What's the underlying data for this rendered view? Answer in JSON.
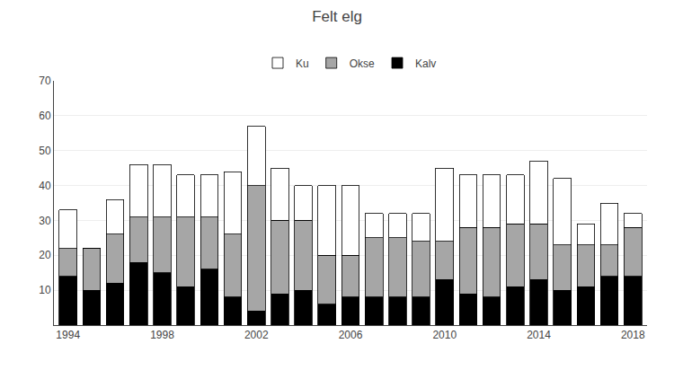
{
  "chart_data": {
    "type": "bar",
    "title": "Felt elg",
    "stacked": true,
    "categories": [
      "1994",
      null,
      null,
      null,
      "1998",
      null,
      null,
      null,
      "2002",
      null,
      null,
      null,
      "2006",
      null,
      null,
      null,
      "2010",
      null,
      null,
      null,
      "2014",
      null,
      null,
      null,
      "2018"
    ],
    "series": [
      {
        "name": "Kalv",
        "color": "#000000",
        "values": [
          14,
          10,
          12,
          18,
          15,
          11,
          16,
          8,
          4,
          9,
          10,
          6,
          8,
          8,
          8,
          8,
          13,
          9,
          8,
          11,
          13,
          10,
          11,
          14,
          14
        ]
      },
      {
        "name": "Okse",
        "color": "#a6a6a6",
        "values": [
          8,
          12,
          14,
          13,
          16,
          20,
          15,
          18,
          36,
          21,
          20,
          14,
          12,
          17,
          17,
          16,
          11,
          19,
          20,
          18,
          16,
          13,
          12,
          9,
          14
        ]
      },
      {
        "name": "Ku",
        "color": "#ffffff",
        "values": [
          11,
          0,
          10,
          15,
          15,
          12,
          12,
          18,
          17,
          15,
          10,
          20,
          20,
          7,
          7,
          8,
          21,
          15,
          15,
          14,
          18,
          19,
          6,
          12,
          4
        ]
      }
    ],
    "ylim": [
      0,
      70
    ],
    "yticks": [
      10,
      20,
      30,
      40,
      50,
      60,
      70
    ],
    "grid": true,
    "legend": "top"
  }
}
